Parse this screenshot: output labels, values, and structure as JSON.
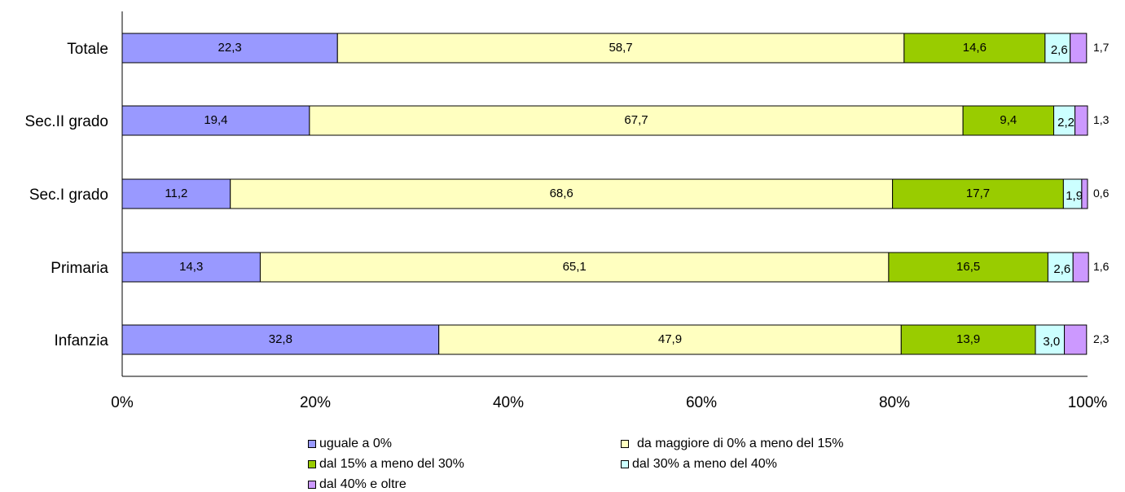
{
  "chart_data": {
    "type": "bar",
    "orientation": "horizontal",
    "stacked": "percent",
    "categories": [
      "Totale",
      "Sec.II grado",
      "Sec.I grado",
      "Primaria",
      "Infanzia"
    ],
    "series": [
      {
        "name": "uguale a 0%",
        "color": "#9999ff",
        "values": [
          22.3,
          19.4,
          11.2,
          14.3,
          32.8
        ],
        "labels": [
          "22,3",
          "19,4",
          "11,2",
          "14,3",
          "32,8"
        ]
      },
      {
        "name": "da maggiore di 0% a meno del 15%",
        "color": "#ffffc0",
        "values": [
          58.7,
          67.7,
          68.6,
          65.1,
          47.9
        ],
        "labels": [
          "58,7",
          "67,7",
          "68,6",
          "65,1",
          "47,9"
        ]
      },
      {
        "name": "dal 15% a meno del 30%",
        "color": "#99cc00",
        "values": [
          14.6,
          9.4,
          17.7,
          16.5,
          13.9
        ],
        "labels": [
          "14,6",
          "9,4",
          "17,7",
          "16,5",
          "13,9"
        ]
      },
      {
        "name": "dal 30% a meno del 40%",
        "color": "#ccffff",
        "values": [
          2.6,
          2.2,
          1.9,
          2.6,
          3.0
        ],
        "labels": [
          "2,6",
          "2,2",
          "1,9",
          "2,6",
          "3,0"
        ]
      },
      {
        "name": "dal 40% e oltre",
        "color": "#cc99ff",
        "values": [
          1.7,
          1.3,
          0.6,
          1.6,
          2.3
        ],
        "labels": [
          "1,7",
          "1,3",
          "0,6",
          "1,6",
          "2,3"
        ]
      }
    ],
    "xlim": [
      0,
      100
    ],
    "xticks": [
      "0%",
      "20%",
      "40%",
      "60%",
      "80%",
      "100%"
    ],
    "grid": false,
    "legend_position": "bottom"
  }
}
